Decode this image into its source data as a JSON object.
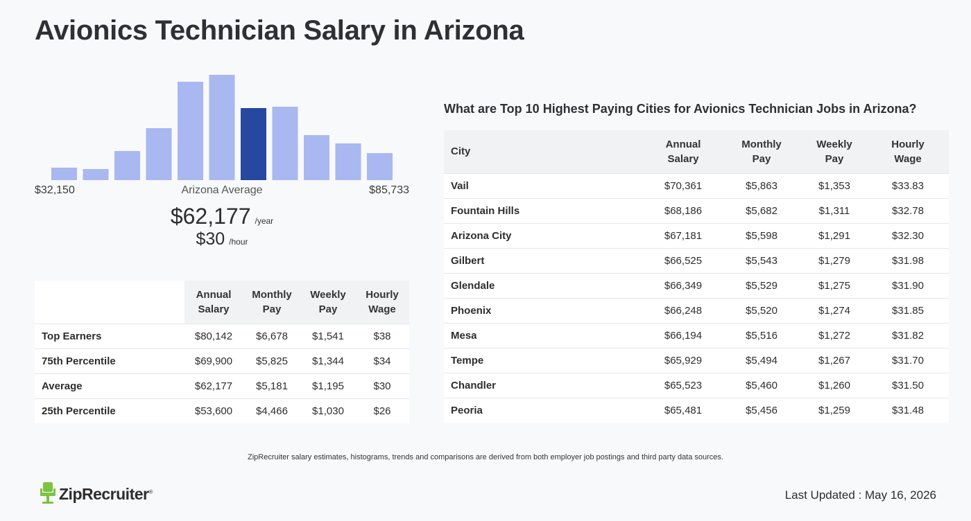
{
  "page": {
    "title": "Avionics Technician Salary in Arizona"
  },
  "chart_data": {
    "type": "bar",
    "title": "",
    "values": [
      18,
      16,
      42,
      75,
      142,
      152,
      104,
      106,
      65,
      53,
      39
    ],
    "highlight_index": 6,
    "colors": {
      "bar": "#a9b8f0",
      "highlight": "#2748a0"
    },
    "xlabel": "",
    "ylabel": "",
    "grid": false
  },
  "summary": {
    "range_min": "$32,150",
    "range_max": "$85,733",
    "average_label": "Arizona Average",
    "annual": "$62,177",
    "annual_unit": "/year",
    "hourly": "$30",
    "hourly_unit": "/hour"
  },
  "percentile_table": {
    "headers": [
      {
        "line1": "Annual",
        "line2": "Salary"
      },
      {
        "line1": "Monthly",
        "line2": "Pay"
      },
      {
        "line1": "Weekly",
        "line2": "Pay"
      },
      {
        "line1": "Hourly",
        "line2": "Wage"
      }
    ],
    "rows": [
      {
        "label": "Top Earners",
        "annual": "$80,142",
        "monthly": "$6,678",
        "weekly": "$1,541",
        "hourly": "$38"
      },
      {
        "label": "75th Percentile",
        "annual": "$69,900",
        "monthly": "$5,825",
        "weekly": "$1,344",
        "hourly": "$34"
      },
      {
        "label": "Average",
        "annual": "$62,177",
        "monthly": "$5,181",
        "weekly": "$1,195",
        "hourly": "$30"
      },
      {
        "label": "25th Percentile",
        "annual": "$53,600",
        "monthly": "$4,466",
        "weekly": "$1,030",
        "hourly": "$26"
      }
    ]
  },
  "cities": {
    "title": "What are Top 10 Highest Paying Cities for Avionics Technician Jobs in Arizona?",
    "city_header": "City",
    "headers": [
      {
        "line1": "Annual",
        "line2": "Salary"
      },
      {
        "line1": "Monthly",
        "line2": "Pay"
      },
      {
        "line1": "Weekly",
        "line2": "Pay"
      },
      {
        "line1": "Hourly",
        "line2": "Wage"
      }
    ],
    "rows": [
      {
        "city": "Vail",
        "annual": "$70,361",
        "monthly": "$5,863",
        "weekly": "$1,353",
        "hourly": "$33.83"
      },
      {
        "city": "Fountain Hills",
        "annual": "$68,186",
        "monthly": "$5,682",
        "weekly": "$1,311",
        "hourly": "$32.78"
      },
      {
        "city": "Arizona City",
        "annual": "$67,181",
        "monthly": "$5,598",
        "weekly": "$1,291",
        "hourly": "$32.30"
      },
      {
        "city": "Gilbert",
        "annual": "$66,525",
        "monthly": "$5,543",
        "weekly": "$1,279",
        "hourly": "$31.98"
      },
      {
        "city": "Glendale",
        "annual": "$66,349",
        "monthly": "$5,529",
        "weekly": "$1,275",
        "hourly": "$31.90"
      },
      {
        "city": "Phoenix",
        "annual": "$66,248",
        "monthly": "$5,520",
        "weekly": "$1,274",
        "hourly": "$31.85"
      },
      {
        "city": "Mesa",
        "annual": "$66,194",
        "monthly": "$5,516",
        "weekly": "$1,272",
        "hourly": "$31.82"
      },
      {
        "city": "Tempe",
        "annual": "$65,929",
        "monthly": "$5,494",
        "weekly": "$1,267",
        "hourly": "$31.70"
      },
      {
        "city": "Chandler",
        "annual": "$65,523",
        "monthly": "$5,460",
        "weekly": "$1,260",
        "hourly": "$31.50"
      },
      {
        "city": "Peoria",
        "annual": "$65,481",
        "monthly": "$5,456",
        "weekly": "$1,259",
        "hourly": "$31.48"
      }
    ]
  },
  "footer": {
    "note": "ZipRecruiter salary estimates, histograms, trends and comparisons are derived from both employer job postings and third party data sources.",
    "logo_text": "ZipRecruiter",
    "logo_mark": "®",
    "logo_color": "#7dc242",
    "last_updated": "Last Updated : May 16, 2026"
  }
}
